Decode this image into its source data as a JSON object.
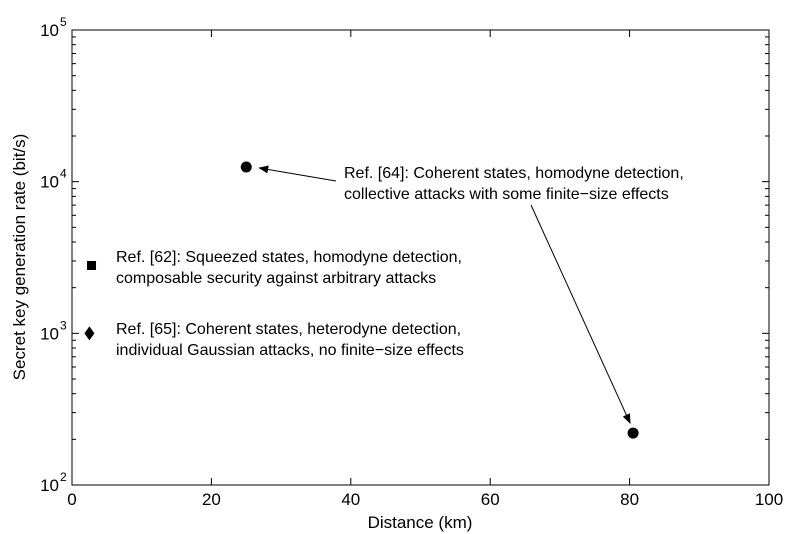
{
  "chart_data": {
    "type": "scatter",
    "xlabel": "Distance (km)",
    "ylabel": "Secret key generation rate (bit/s)",
    "xlim": [
      0,
      100
    ],
    "ylim": [
      100,
      100000
    ],
    "yscale": "log",
    "grid": false,
    "x_ticks": [
      "0",
      "20",
      "40",
      "60",
      "80",
      "100"
    ],
    "y_ticks": [
      {
        "base": "10",
        "exp": "2"
      },
      {
        "base": "10",
        "exp": "3"
      },
      {
        "base": "10",
        "exp": "4"
      },
      {
        "base": "10",
        "exp": "5"
      }
    ],
    "series": [
      {
        "ref": "Ref. [64]",
        "marker": "circle",
        "points": [
          {
            "x": 25,
            "y": 12500
          },
          {
            "x": 80.5,
            "y": 220
          }
        ]
      },
      {
        "ref": "Ref. [62]",
        "marker": "square",
        "points": [
          {
            "x": 2.8,
            "y": 2800
          }
        ]
      },
      {
        "ref": "Ref. [65]",
        "marker": "diamond",
        "points": [
          {
            "x": 2.5,
            "y": 1000
          }
        ]
      }
    ],
    "annotations": [
      {
        "ref": "Ref. [64]",
        "lines": [
          "Ref. [64]: Coherent states, homodyne detection,",
          "collective attacks with some finite−size effects"
        ]
      },
      {
        "ref": "Ref. [62]",
        "lines": [
          "Ref. [62]: Squeezed states, homodyne detection,",
          "composable security against arbitrary attacks"
        ]
      },
      {
        "ref": "Ref. [65]",
        "lines": [
          "Ref. [65]: Coherent states, heterodyne detection,",
          "individual Gaussian attacks, no finite−size effects"
        ]
      }
    ]
  }
}
